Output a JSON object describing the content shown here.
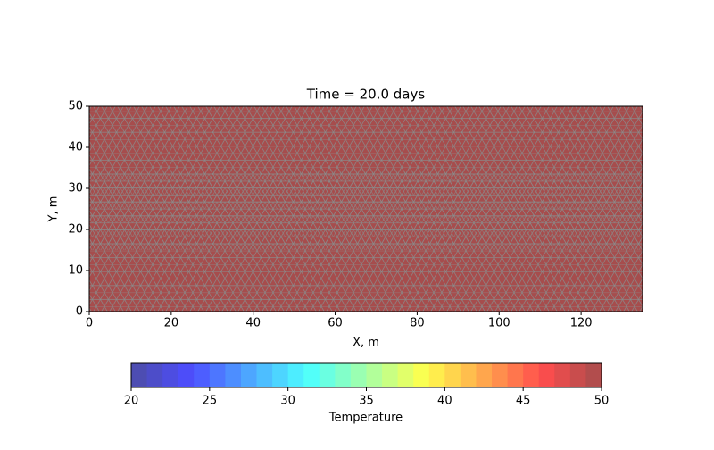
{
  "chart_data": {
    "type": "tricontour",
    "title": "Time = 20.0 days",
    "xlabel": "X, m",
    "ylabel": "Y, m",
    "xlim": [
      0,
      135
    ],
    "ylim": [
      0,
      50
    ],
    "xticks": [
      0,
      20,
      40,
      60,
      80,
      100,
      120
    ],
    "yticks": [
      0,
      10,
      20,
      30,
      40,
      50
    ],
    "field_value": 50,
    "mesh": true,
    "colorbar": {
      "label": "Temperature",
      "colormap": "jet",
      "alpha": 0.7,
      "lim": [
        20,
        50
      ],
      "ticks": [
        20,
        25,
        30,
        35,
        40,
        45,
        50
      ],
      "levels": [
        20,
        21,
        22,
        23,
        24,
        25,
        26,
        27,
        28,
        29,
        30,
        31,
        32,
        33,
        34,
        35,
        36,
        37,
        38,
        39,
        40,
        41,
        42,
        43,
        44,
        45,
        46,
        47,
        48,
        49,
        50
      ]
    }
  }
}
